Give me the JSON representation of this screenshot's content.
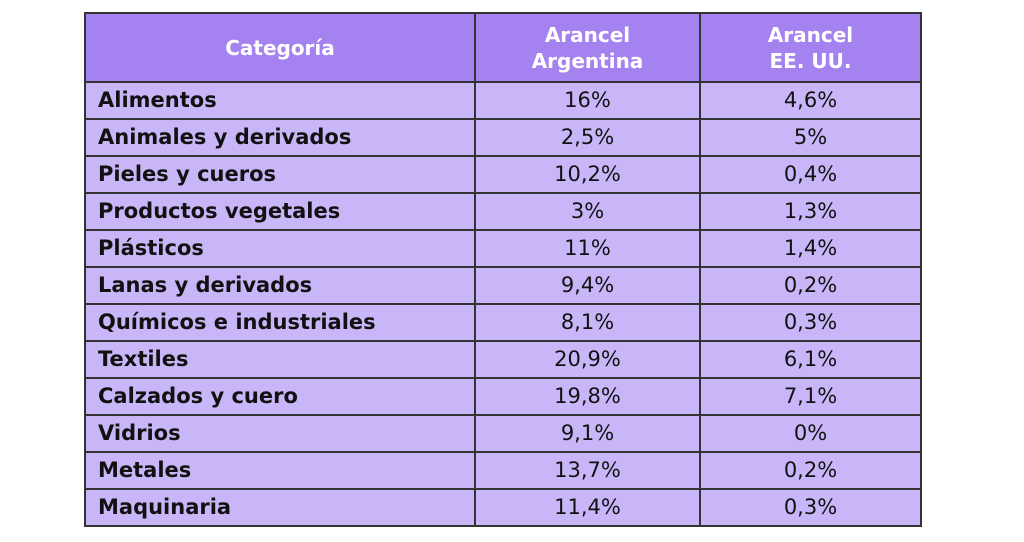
{
  "chart_data": {
    "type": "table",
    "columns": [
      "Categoría",
      "Arancel Argentina",
      "Arancel EE. UU."
    ],
    "header": {
      "category": "Categoría",
      "argentina": [
        "Arancel",
        "Argentina"
      ],
      "usa": [
        "Arancel",
        "EE. UU."
      ]
    },
    "rows": [
      {
        "category": "Alimentos",
        "argentina": "16%",
        "usa": "4,6%"
      },
      {
        "category": "Animales y derivados",
        "argentina": "2,5%",
        "usa": "5%"
      },
      {
        "category": "Pieles y cueros",
        "argentina": "10,2%",
        "usa": "0,4%"
      },
      {
        "category": "Productos vegetales",
        "argentina": "3%",
        "usa": "1,3%"
      },
      {
        "category": "Plásticos",
        "argentina": "11%",
        "usa": "1,4%"
      },
      {
        "category": "Lanas y derivados",
        "argentina": "9,4%",
        "usa": "0,2%"
      },
      {
        "category": "Químicos e industriales",
        "argentina": "8,1%",
        "usa": "0,3%"
      },
      {
        "category": "Textiles",
        "argentina": "20,9%",
        "usa": "6,1%"
      },
      {
        "category": "Calzados y cuero",
        "argentina": "19,8%",
        "usa": "7,1%"
      },
      {
        "category": "Vidrios",
        "argentina": "9,1%",
        "usa": "0%"
      },
      {
        "category": "Metales",
        "argentina": "13,7%",
        "usa": "0,2%"
      },
      {
        "category": "Maquinaria",
        "argentina": "11,4%",
        "usa": "0,3%"
      }
    ]
  },
  "colors": {
    "header_bg": "#a482f0",
    "row_bg": "#c9b6f8",
    "border": "#333333"
  }
}
